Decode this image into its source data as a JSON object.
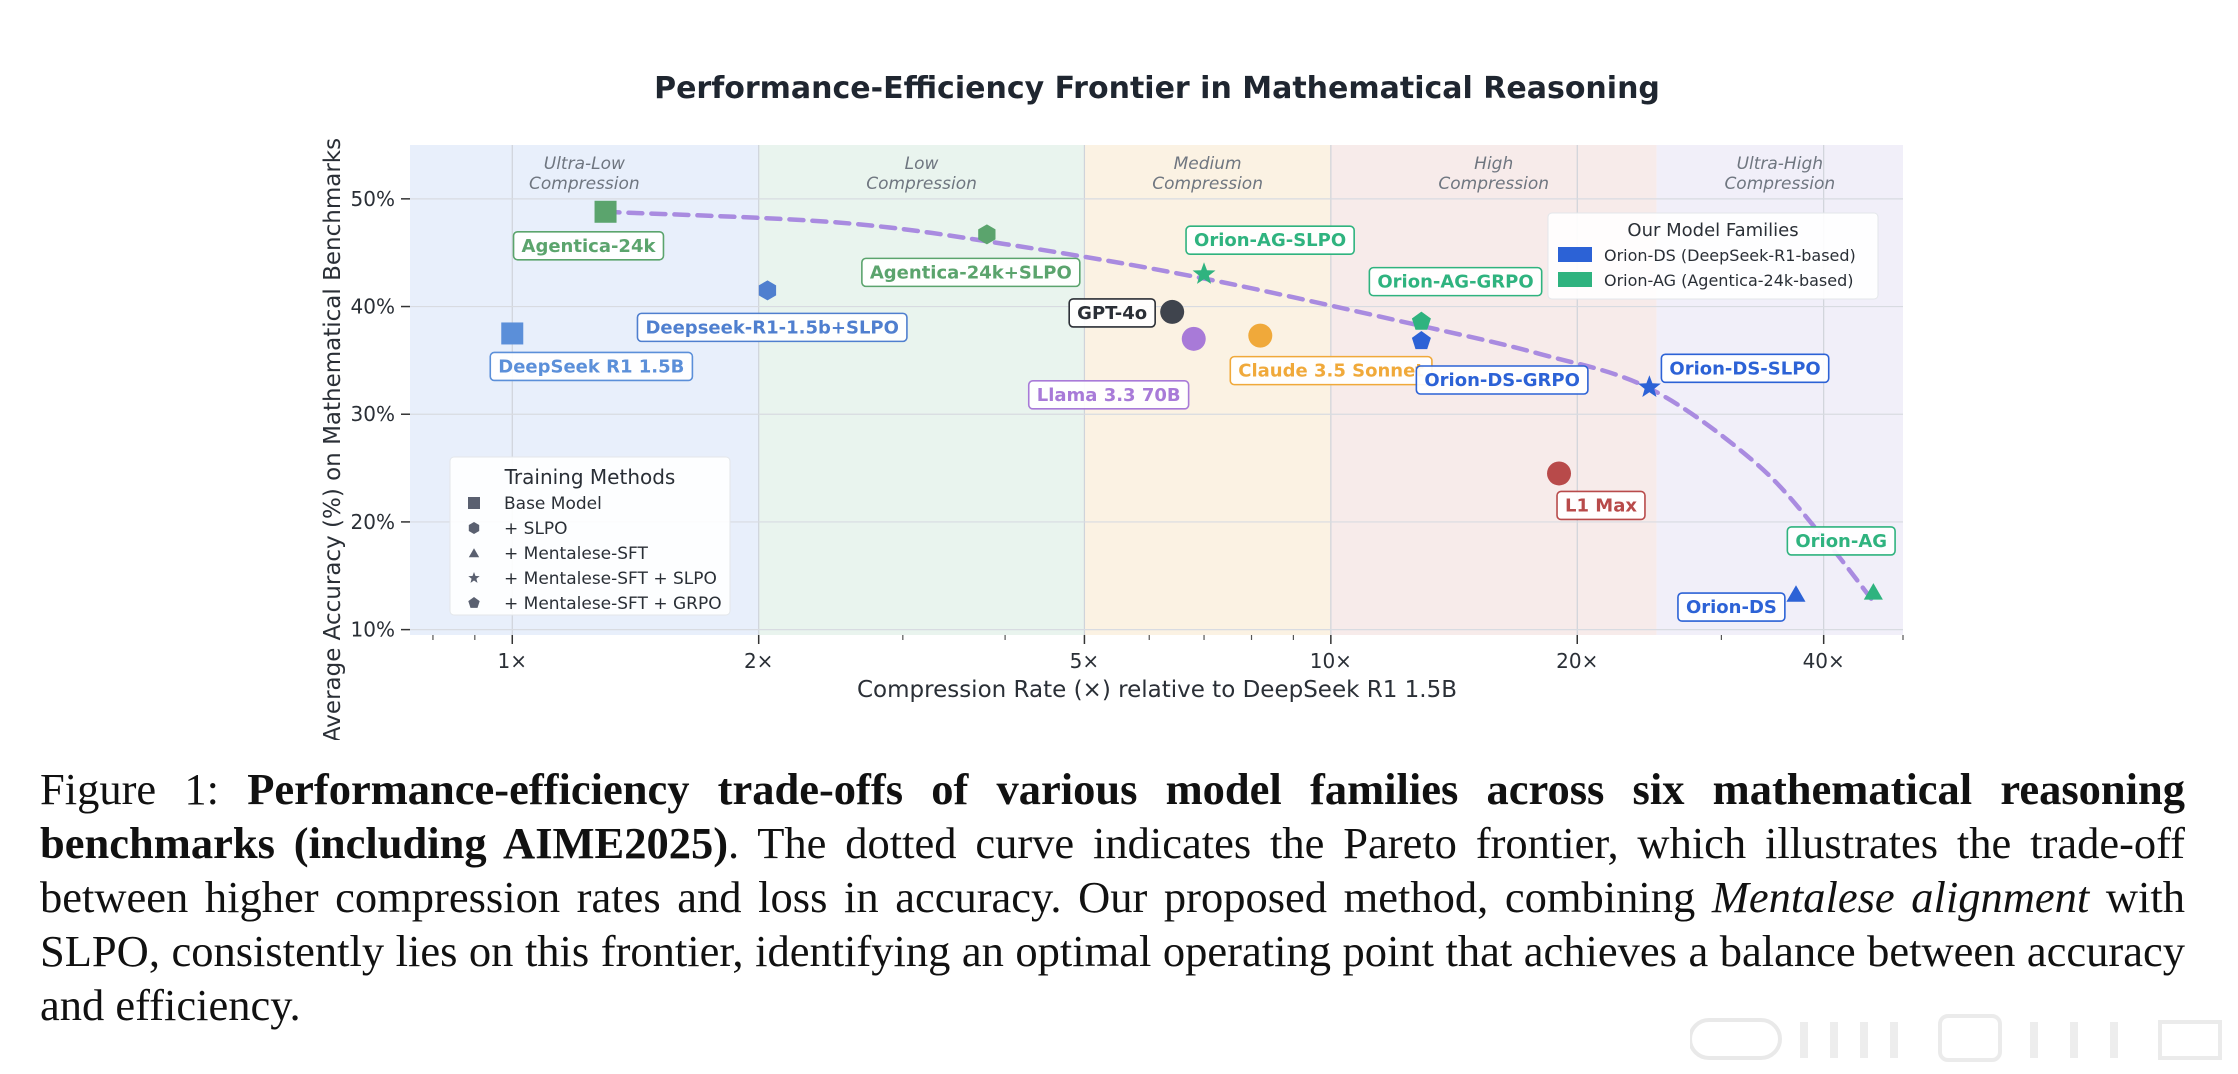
{
  "chart_data": {
    "type": "scatter",
    "title": "Performance-Efficiency Frontier in Mathematical Reasoning",
    "xlabel": "Compression Rate (×) relative to DeepSeek R1 1.5B",
    "ylabel": "Average Accuracy (%) on Mathematical Benchmarks",
    "xscale": "log",
    "xlim": [
      0.75,
      50
    ],
    "ylim": [
      9.5,
      55
    ],
    "xticks": [
      {
        "value": 1,
        "label": "1×"
      },
      {
        "value": 2,
        "label": "2×"
      },
      {
        "value": 5,
        "label": "5×"
      },
      {
        "value": 10,
        "label": "10×"
      },
      {
        "value": 20,
        "label": "20×"
      },
      {
        "value": 40,
        "label": "40×"
      }
    ],
    "yticks": [
      {
        "value": 10,
        "label": "10%"
      },
      {
        "value": 20,
        "label": "20%"
      },
      {
        "value": 30,
        "label": "30%"
      },
      {
        "value": 40,
        "label": "40%"
      },
      {
        "value": 50,
        "label": "50%"
      }
    ],
    "regions": [
      {
        "label1": "Ultra-Low",
        "label2": "Compression",
        "x0": 0.75,
        "x1": 2,
        "color": "#e8effb"
      },
      {
        "label1": "Low",
        "label2": "Compression",
        "x0": 2,
        "x1": 5,
        "color": "#e9f4ee"
      },
      {
        "label1": "Medium",
        "label2": "Compression",
        "x0": 5,
        "x1": 10,
        "color": "#fbf2e3"
      },
      {
        "label1": "High",
        "label2": "Compression",
        "x0": 10,
        "x1": 25,
        "color": "#f7ebea"
      },
      {
        "label1": "Ultra-High",
        "label2": "Compression",
        "x0": 25,
        "x1": 50,
        "color": "#f1eff9"
      }
    ],
    "points": [
      {
        "name": "DeepSeek R1 1.5B",
        "x": 1.0,
        "y": 37.5,
        "marker": "square",
        "color": "#5b8fd9"
      },
      {
        "name": "Agentica-24k",
        "x": 1.3,
        "y": 48.8,
        "marker": "square",
        "color": "#5ba46d"
      },
      {
        "name": "Deepseek-R1-1.5b+SLPO",
        "x": 2.05,
        "y": 41.5,
        "marker": "hexagon",
        "color": "#4f7fcf"
      },
      {
        "name": "Agentica-24k+SLPO",
        "x": 3.8,
        "y": 46.7,
        "marker": "hexagon",
        "color": "#5ba46d"
      },
      {
        "name": "GPT-4o",
        "x": 6.4,
        "y": 39.5,
        "marker": "circle",
        "color": "#3f444d"
      },
      {
        "name": "Llama 3.3 70B",
        "x": 6.8,
        "y": 37.0,
        "marker": "circle",
        "color": "#a87ad8"
      },
      {
        "name": "Claude 3.5 Sonnet",
        "x": 8.2,
        "y": 37.3,
        "marker": "circle",
        "color": "#f0a93a"
      },
      {
        "name": "Orion-AG-SLPO",
        "x": 7.0,
        "y": 43.0,
        "marker": "star",
        "color": "#2fb37f"
      },
      {
        "name": "Orion-AG-GRPO",
        "x": 12.9,
        "y": 38.6,
        "marker": "pentagon",
        "color": "#2fb37f"
      },
      {
        "name": "Orion-DS-GRPO",
        "x": 12.9,
        "y": 36.8,
        "marker": "pentagon",
        "color": "#2c62d6"
      },
      {
        "name": "Orion-DS-SLPO",
        "x": 24.5,
        "y": 32.5,
        "marker": "star",
        "color": "#2c62d6"
      },
      {
        "name": "L1 Max",
        "x": 19.0,
        "y": 24.5,
        "marker": "circle",
        "color": "#b84a4a"
      },
      {
        "name": "Orion-DS",
        "x": 37.0,
        "y": 13.3,
        "marker": "triangle",
        "color": "#2c62d6"
      },
      {
        "name": "Orion-AG",
        "x": 46.0,
        "y": 13.5,
        "marker": "triangle",
        "color": "#2fb37f"
      }
    ],
    "frontier": [
      {
        "x": 1.3,
        "y": 48.8
      },
      {
        "x": 2.5,
        "y": 47.8
      },
      {
        "x": 4.0,
        "y": 45.8
      },
      {
        "x": 7.0,
        "y": 42.6
      },
      {
        "x": 12.9,
        "y": 38.2
      },
      {
        "x": 18.0,
        "y": 35.6
      },
      {
        "x": 24.5,
        "y": 32.4
      },
      {
        "x": 33.0,
        "y": 25.5
      },
      {
        "x": 40.0,
        "y": 18.5
      },
      {
        "x": 46.0,
        "y": 12.6
      }
    ],
    "frontier_color": "#a98be0",
    "legend_methods": {
      "title": "Training Methods",
      "position": "lower-left",
      "items": [
        {
          "marker": "square",
          "label": "Base Model"
        },
        {
          "marker": "hexagon",
          "label": "+ SLPO"
        },
        {
          "marker": "triangle",
          "label": "+ Mentalese-SFT"
        },
        {
          "marker": "star",
          "label": "+ Mentalese-SFT + SLPO"
        },
        {
          "marker": "pentagon",
          "label": "+ Mentalese-SFT + GRPO"
        }
      ]
    },
    "legend_families": {
      "title": "Our Model Families",
      "position": "upper-right",
      "items": [
        {
          "color": "#2c62d6",
          "label": "Orion-DS (DeepSeek-R1-based)"
        },
        {
          "color": "#2fb37f",
          "label": "Orion-AG (Agentica-24k-based)"
        }
      ]
    }
  },
  "caption": {
    "prefix": "Figure 1: ",
    "bold": "Performance-efficiency trade-offs of various model families across six mathematical reasoning benchmarks (including AIME2025)",
    "text1": ".  The dotted curve indicates the Pareto frontier, which illustrates the trade-off between higher compression rates and loss in accuracy. Our proposed method, combining ",
    "italic": "Mentalese alignment",
    "text2": " with SLPO, consistently lies on this frontier, identifying an optimal operating point that achieves a balance between accuracy and efficiency."
  }
}
